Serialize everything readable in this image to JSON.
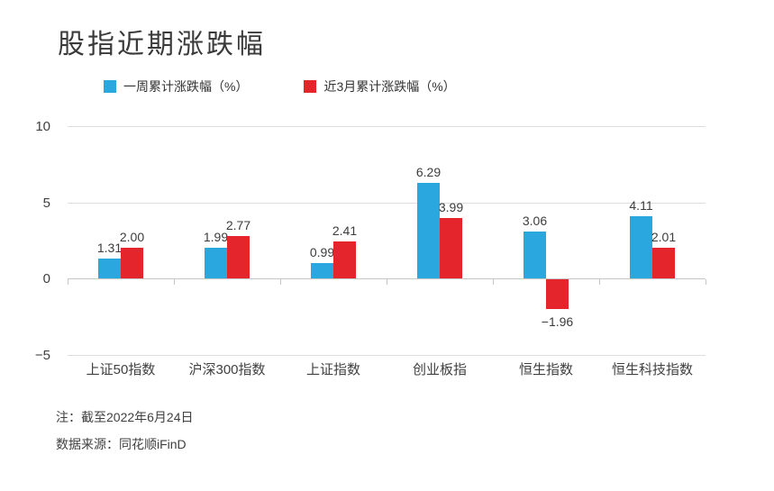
{
  "title": "股指近期涨跌幅",
  "chart_data": {
    "type": "bar",
    "title": "股指近期涨跌幅",
    "categories": [
      "上证50指数",
      "沪深300指数",
      "上证指数",
      "创业板指",
      "恒生指数",
      "恒生科技指数"
    ],
    "series": [
      {
        "name": "一周累计涨跌幅（%）",
        "color": "#2BA7DF",
        "values": [
          1.31,
          1.99,
          0.99,
          6.29,
          3.06,
          4.11
        ]
      },
      {
        "name": "近3月累计涨跌幅（%）",
        "color": "#E4252B",
        "values": [
          2.0,
          2.77,
          2.41,
          3.99,
          -1.96,
          2.01
        ]
      }
    ],
    "xlabel": "",
    "ylabel": "",
    "ylim": [
      -5,
      10
    ],
    "yticks": [
      10,
      5,
      0,
      -5
    ],
    "grid": "horizontal",
    "legend_position": "top",
    "value_labels": true
  },
  "notes": {
    "note1": "注：截至2022年6月24日",
    "note2": "数据来源：同花顺iFinD"
  },
  "colors": {
    "series_week": "#2BA7DF",
    "series_3month": "#E4252B",
    "gridline": "#dddddd",
    "axis_line": "#c6c6c6",
    "text": "#404040",
    "background": "#ffffff"
  }
}
